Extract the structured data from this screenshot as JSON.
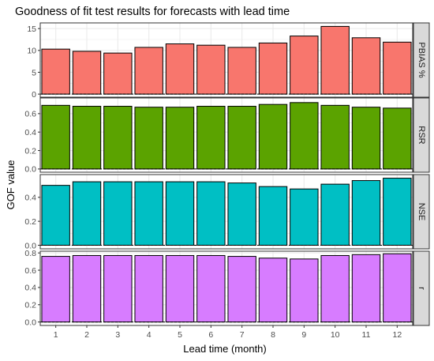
{
  "chart_data": {
    "type": "bar",
    "title": "Goodness of fit test results for forecasts with lead time",
    "xlabel": "Lead time (month)",
    "ylabel": "GOF value",
    "categories": [
      "1",
      "2",
      "3",
      "4",
      "5",
      "6",
      "7",
      "8",
      "9",
      "10",
      "11",
      "12"
    ],
    "facet_position": "right",
    "grid": true,
    "reference_line": {
      "y": 0,
      "style": "dashed"
    },
    "panels": [
      {
        "name": "PBIAS %",
        "color": "#F8766D",
        "ylim": [
          -0.7,
          16.3
        ],
        "yticks": [
          0,
          5,
          10,
          15
        ],
        "tick_labels": [
          "0",
          "5",
          "10",
          "15"
        ],
        "values": [
          10.3,
          9.8,
          9.4,
          10.7,
          11.5,
          11.2,
          10.7,
          11.7,
          13.3,
          15.5,
          12.9,
          11.9
        ]
      },
      {
        "name": "RSR",
        "color": "#5BA300",
        "ylim": [
          -0.035,
          0.77
        ],
        "yticks": [
          0.0,
          0.2,
          0.4,
          0.6
        ],
        "tick_labels": [
          "0.0",
          "0.2",
          "0.4",
          "0.6"
        ],
        "values": [
          0.69,
          0.68,
          0.68,
          0.67,
          0.67,
          0.68,
          0.68,
          0.7,
          0.72,
          0.69,
          0.67,
          0.66
        ]
      },
      {
        "name": "NSE",
        "color": "#00BFC4",
        "ylim": [
          -0.03,
          0.59
        ],
        "yticks": [
          0.0,
          0.2,
          0.4
        ],
        "tick_labels": [
          "0.0",
          "0.2",
          "0.4"
        ],
        "values": [
          0.5,
          0.53,
          0.53,
          0.53,
          0.53,
          0.53,
          0.52,
          0.49,
          0.47,
          0.51,
          0.54,
          0.56
        ]
      },
      {
        "name": "r",
        "color": "#D77CFF",
        "ylim": [
          -0.04,
          0.82
        ],
        "yticks": [
          0.0,
          0.2,
          0.4,
          0.6,
          0.8
        ],
        "tick_labels": [
          "0.0",
          "0.2",
          "0.4",
          "0.6",
          "0.8"
        ],
        "values": [
          0.76,
          0.77,
          0.77,
          0.77,
          0.77,
          0.77,
          0.76,
          0.74,
          0.73,
          0.77,
          0.78,
          0.79
        ]
      }
    ]
  },
  "colors": {
    "panel_background": "#ffffff",
    "grid": "#ebebeb",
    "strip_background": "#d9d9d9",
    "border": "#333333",
    "bar_outline": "#000000"
  }
}
